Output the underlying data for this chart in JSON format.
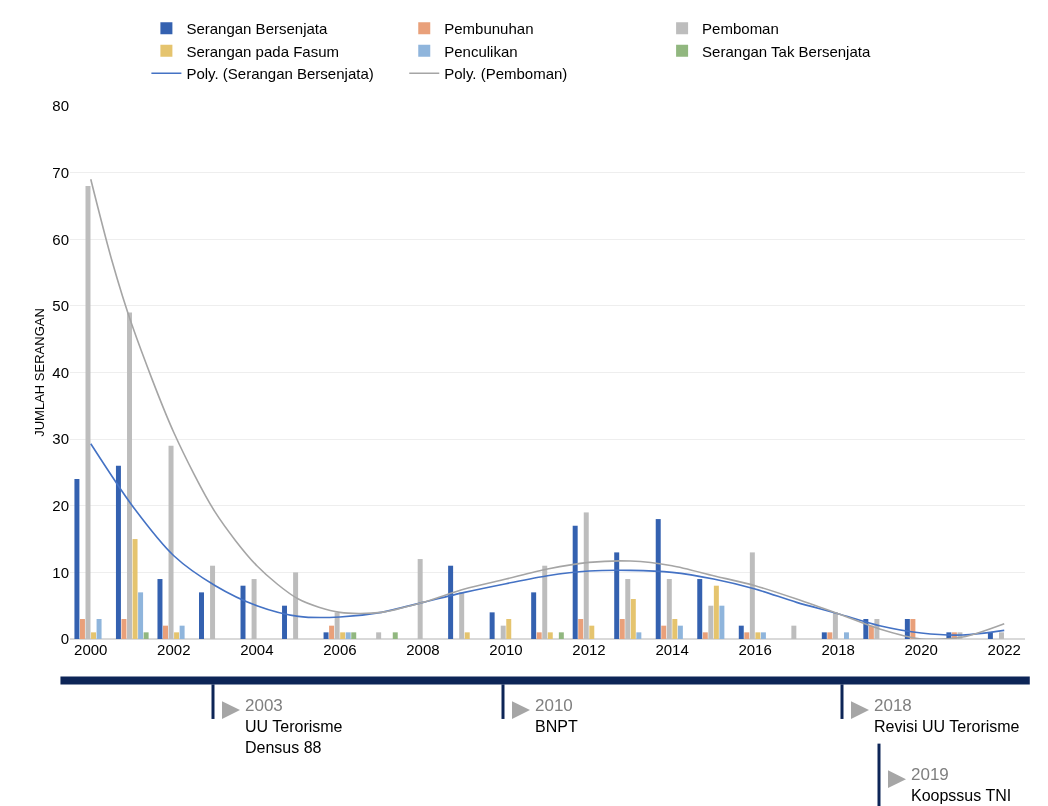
{
  "chart_data": {
    "type": "bar",
    "ylabel": "JUMLAH SERANGAN",
    "x": [
      2000,
      2001,
      2002,
      2003,
      2004,
      2005,
      2006,
      2007,
      2008,
      2009,
      2010,
      2011,
      2012,
      2013,
      2014,
      2015,
      2016,
      2017,
      2018,
      2019,
      2020,
      2021,
      2022
    ],
    "xlim": [
      1999.5,
      2022.5
    ],
    "xticks": [
      2000,
      2002,
      2004,
      2006,
      2008,
      2010,
      2012,
      2014,
      2016,
      2018,
      2020,
      2022
    ],
    "ylim": [
      0,
      80
    ],
    "yticks": [
      0,
      10,
      20,
      30,
      40,
      50,
      60,
      70,
      80
    ],
    "grid": "y",
    "legend": "top",
    "series": [
      {
        "name": "Serangan Bersenjata",
        "color": "#3461b0",
        "values": [
          24,
          26,
          9,
          7,
          8,
          5,
          1,
          0,
          0,
          11,
          4,
          7,
          17,
          13,
          18,
          9,
          2,
          0,
          1,
          3,
          3,
          1,
          1
        ]
      },
      {
        "name": "Pembunuhan",
        "color": "#e9a07a",
        "values": [
          3,
          3,
          2,
          0,
          0,
          0,
          2,
          0,
          0,
          0,
          0,
          1,
          3,
          3,
          2,
          1,
          1,
          0,
          1,
          2,
          3,
          1,
          0
        ]
      },
      {
        "name": "Pemboman",
        "color": "#bdbdbd",
        "values": [
          68,
          49,
          29,
          11,
          9,
          10,
          4,
          1,
          12,
          7,
          2,
          11,
          19,
          9,
          9,
          5,
          13,
          2,
          4,
          3,
          0,
          1,
          1
        ]
      },
      {
        "name": "Serangan pada Fasum",
        "color": "#e5c46e",
        "values": [
          1,
          15,
          1,
          0,
          0,
          0,
          1,
          0,
          0,
          1,
          3,
          1,
          2,
          6,
          3,
          8,
          1,
          0,
          0,
          0,
          0,
          0,
          0
        ]
      },
      {
        "name": "Penculikan",
        "color": "#8fb5dc",
        "values": [
          3,
          7,
          2,
          0,
          0,
          0,
          1,
          0,
          0,
          0,
          0,
          0,
          0,
          1,
          2,
          5,
          1,
          0,
          1,
          0,
          0,
          0,
          0
        ]
      },
      {
        "name": "Serangan Tak Bersenjata",
        "color": "#91b77f",
        "values": [
          0,
          1,
          0,
          0,
          0,
          0,
          1,
          1,
          0,
          0,
          0,
          1,
          0,
          0,
          0,
          0,
          0,
          0,
          0,
          0,
          0,
          0,
          0
        ]
      },
      {
        "name": "Poly. (Serangan Bersenjata)",
        "type": "line",
        "color": "#4472c4",
        "x": [
          2000,
          2001,
          2002,
          2003,
          2004,
          2005,
          2006,
          2007,
          2008,
          2009,
          2010,
          2011,
          2012,
          2013,
          2014,
          2015,
          2016,
          2017,
          2018,
          2019,
          2020,
          2021,
          2022
        ],
        "values": [
          29.3,
          20,
          12.5,
          8,
          5,
          3.4,
          3.3,
          4,
          5.5,
          7,
          8.3,
          9.5,
          10.2,
          10.3,
          10,
          9,
          7.5,
          5.5,
          3.8,
          2,
          0.9,
          0.6,
          1.3
        ]
      },
      {
        "name": "Poly. (Pemboman)",
        "type": "line",
        "color": "#a5a5a5",
        "x": [
          2000,
          2000.5,
          2001,
          2002,
          2003,
          2004,
          2005,
          2006,
          2007,
          2008,
          2009,
          2010,
          2011,
          2012,
          2013,
          2014,
          2015,
          2016,
          2017,
          2018,
          2019,
          2020,
          2021,
          2022
        ],
        "values": [
          69,
          57,
          47,
          31,
          19,
          11,
          6,
          4,
          4,
          5.5,
          7.5,
          9,
          10.5,
          11.5,
          11.7,
          11,
          9.5,
          8,
          6,
          3.8,
          1.5,
          0,
          0.3,
          2.3
        ]
      }
    ],
    "annotations": [
      "2003\nUU Terorisme\nDensus 88",
      "2010\nBNPT",
      "2018\nRevisi UU Terorisme",
      "2019\nKoopssus TNI"
    ]
  }
}
